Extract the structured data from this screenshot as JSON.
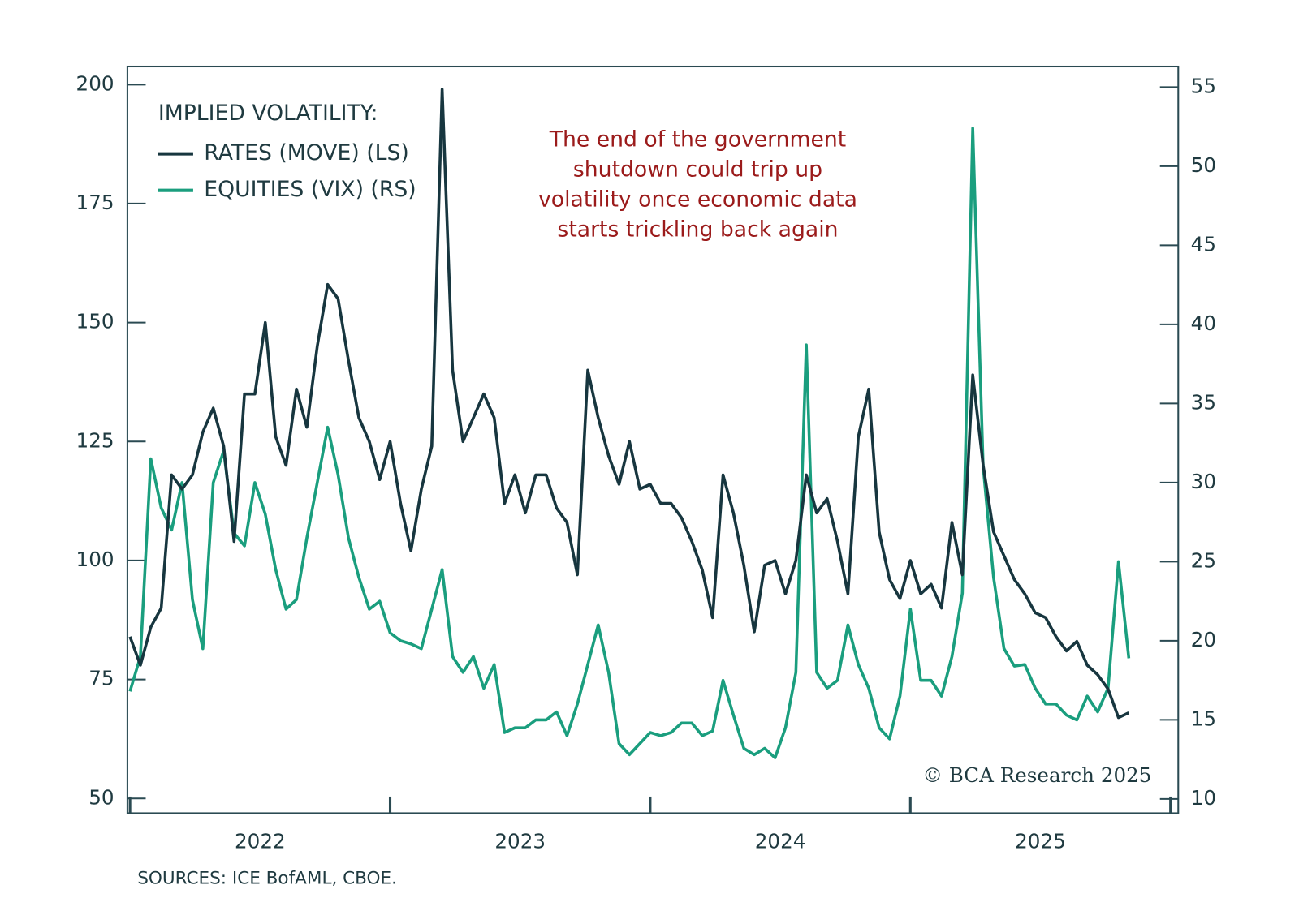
{
  "chart_data": {
    "type": "line",
    "legend_title": "IMPLIED VOLATILITY:",
    "annotation": [
      "The end of the government",
      "shutdown could trip up",
      "volatility once economic data",
      "starts trickling back again"
    ],
    "credit": "© BCA Research 2025",
    "source": "SOURCES: ICE BofAML, CBOE.",
    "x": [
      2022,
      2022.04,
      2022.08,
      2022.12,
      2022.16,
      2022.2,
      2022.24,
      2022.28,
      2022.32,
      2022.36,
      2022.4,
      2022.44,
      2022.48,
      2022.52,
      2022.56,
      2022.6,
      2022.64,
      2022.68,
      2022.72,
      2022.76,
      2022.8,
      2022.84,
      2022.88,
      2022.92,
      2022.96,
      2023,
      2023.04,
      2023.08,
      2023.12,
      2023.16,
      2023.2,
      2023.24,
      2023.28,
      2023.32,
      2023.36,
      2023.4,
      2023.44,
      2023.48,
      2023.52,
      2023.56,
      2023.6,
      2023.64,
      2023.68,
      2023.72,
      2023.76,
      2023.8,
      2023.84,
      2023.88,
      2023.92,
      2023.96,
      2024,
      2024.04,
      2024.08,
      2024.12,
      2024.16,
      2024.2,
      2024.24,
      2024.28,
      2024.32,
      2024.36,
      2024.4,
      2024.44,
      2024.48,
      2024.52,
      2024.56,
      2024.6,
      2024.64,
      2024.68,
      2024.72,
      2024.76,
      2024.8,
      2024.84,
      2024.88,
      2024.92,
      2024.96,
      2025,
      2025.04,
      2025.08,
      2025.12,
      2025.16,
      2025.2,
      2025.24,
      2025.28,
      2025.32,
      2025.36,
      2025.4,
      2025.44,
      2025.48,
      2025.52,
      2025.56,
      2025.6,
      2025.64,
      2025.68,
      2025.72,
      2025.76,
      2025.8,
      2025.84
    ],
    "xlim": [
      2021.99,
      2026.03
    ],
    "xticks": [
      {
        "value": 2022.5,
        "label": "2022"
      },
      {
        "value": 2023.5,
        "label": "2023"
      },
      {
        "value": 2024.5,
        "label": "2024"
      },
      {
        "value": 2025.5,
        "label": "2025"
      }
    ],
    "xtick_marks": [
      2022,
      2023,
      2024,
      2025,
      2026
    ],
    "ylim": [
      46.9,
      203.8
    ],
    "yticks": [
      50,
      75,
      100,
      125,
      150,
      175,
      200
    ],
    "y2lim": [
      9.1,
      56.3
    ],
    "y2ticks": [
      10,
      15,
      20,
      25,
      30,
      35,
      40,
      45,
      50,
      55
    ],
    "series": [
      {
        "name": "RATES (MOVE) (LS)",
        "color": "#17363f",
        "values": [
          84,
          78,
          86,
          90,
          118,
          115,
          118,
          127,
          132,
          124,
          104,
          135,
          135,
          150,
          126,
          120,
          136,
          128,
          145,
          158,
          155,
          142,
          130,
          125,
          117,
          125,
          112,
          102,
          115,
          124,
          199,
          140,
          125,
          130,
          135,
          130,
          112,
          118,
          110,
          118,
          118,
          111,
          108,
          97,
          140,
          130,
          122,
          116,
          125,
          115,
          116,
          112,
          112,
          109,
          104,
          98,
          88,
          118,
          110,
          99,
          85,
          99,
          100,
          93,
          100,
          118,
          110,
          113,
          104,
          93,
          126,
          136,
          106,
          96,
          92,
          100,
          93,
          95,
          90,
          108,
          97,
          139,
          120,
          106,
          101,
          96,
          93,
          89,
          88,
          84,
          81,
          83,
          78,
          76,
          73,
          67,
          68
        ]
      },
      {
        "name": "EQUITIES (VIX) (RS)",
        "color": "#1a9e7e",
        "axis": "y2",
        "values": [
          16.8,
          19,
          31.5,
          28.4,
          27,
          30,
          22.6,
          19.5,
          30,
          32,
          26.8,
          26,
          30,
          28,
          24.5,
          22,
          22.6,
          26.5,
          30,
          33.5,
          30.5,
          26.5,
          24,
          22,
          22.5,
          20.5,
          20,
          19.8,
          19.5,
          22,
          24.5,
          19,
          18,
          19,
          17,
          18.5,
          14.2,
          14.5,
          14.5,
          15,
          15,
          15.5,
          14,
          16,
          18.5,
          21,
          18,
          13.5,
          12.8,
          13.5,
          14.2,
          14,
          14.2,
          14.8,
          14.8,
          14,
          14.3,
          17.5,
          15.3,
          13.2,
          12.8,
          13.2,
          12.6,
          14.5,
          18,
          38.7,
          18,
          17,
          17.5,
          21,
          18.5,
          17,
          14.5,
          13.8,
          16.5,
          22,
          17.5,
          17.5,
          16.5,
          19,
          23,
          52.4,
          31,
          24,
          19.5,
          18.4,
          18.5,
          17,
          16,
          16,
          15.3,
          15,
          16.5,
          15.5,
          17,
          25,
          18.9
        ]
      }
    ]
  }
}
